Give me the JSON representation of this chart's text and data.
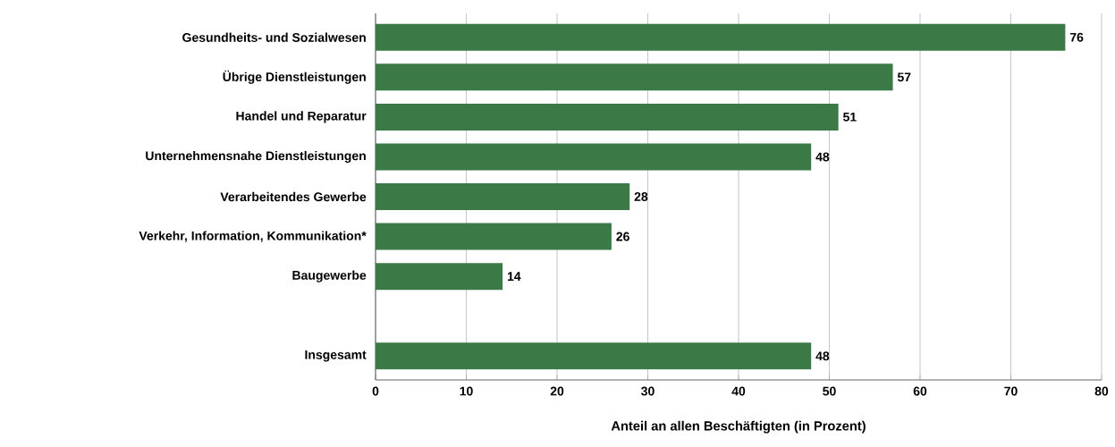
{
  "chart_data": {
    "type": "bar",
    "orientation": "horizontal",
    "xlabel": "Anteil an allen Beschäftigten (in Prozent)",
    "categories": [
      "Gesundheits- und Sozialwesen",
      "Übrige Dienstleistungen",
      "Handel und Reparatur",
      "Unternehmensnahe Dienstleistungen",
      "Verarbeitendes Gewerbe",
      "Verkehr, Information, Kommunikation*",
      "Baugewerbe",
      null,
      "Insgesamt"
    ],
    "values": [
      76,
      57,
      51,
      48,
      28,
      26,
      14,
      null,
      48
    ],
    "color": "#3b7a47",
    "xlim": [
      0,
      80
    ],
    "xticks": [
      0,
      10,
      20,
      30,
      40,
      50,
      60,
      70,
      80
    ],
    "grid": "x",
    "data_labels": true
  }
}
